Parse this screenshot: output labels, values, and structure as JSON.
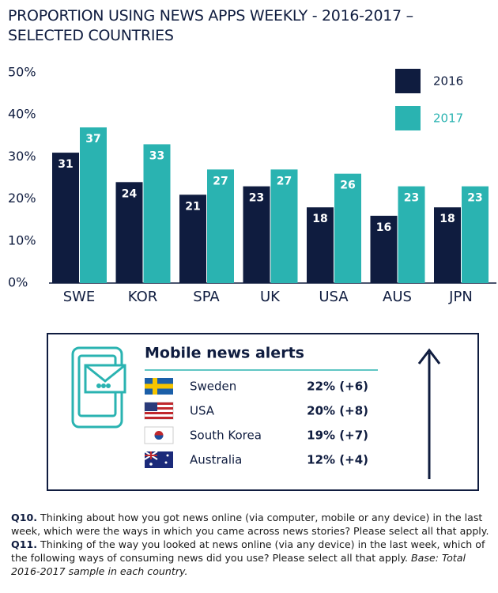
{
  "chart_data": {
    "type": "bar",
    "title": "PROPORTION USING NEWS APPS WEEKLY - 2016-2017 – SELECTED COUNTRIES",
    "categories": [
      "SWE",
      "KOR",
      "SPA",
      "UK",
      "USA",
      "AUS",
      "JPN"
    ],
    "series": [
      {
        "name": "2016",
        "color": "#0f1c3f",
        "values": [
          31,
          24,
          21,
          23,
          18,
          16,
          18
        ]
      },
      {
        "name": "2017",
        "color": "#2ab3b1",
        "values": [
          37,
          33,
          27,
          27,
          26,
          23,
          23
        ]
      }
    ],
    "ylim": [
      0,
      50
    ],
    "yticks": [
      {
        "value": 0,
        "label": "0%"
      },
      {
        "value": 10,
        "label": "10%"
      },
      {
        "value": 20,
        "label": "20%"
      },
      {
        "value": 30,
        "label": "30%"
      },
      {
        "value": 40,
        "label": "40%"
      },
      {
        "value": 50,
        "label": "50%"
      }
    ],
    "grid": false
  },
  "alerts": {
    "title": "Mobile news alerts",
    "rows": [
      {
        "country": "Sweden",
        "value": "22% (+6)"
      },
      {
        "country": "USA",
        "value": "20% (+8)"
      },
      {
        "country": "South Korea",
        "value": "19% (+7)"
      },
      {
        "country": "Australia",
        "value": "12% (+4)"
      }
    ]
  },
  "notes": {
    "q10_label": "Q10.",
    "q10_text": "Thinking about how you got news online (via computer, mobile or any device) in the last week, which were the ways in which you came across news stories? Please select all that apply.",
    "q11_label": "Q11.",
    "q11_text": "Thinking of the way you looked at news online (via any device) in the last week, which of the following ways of consuming news did you use? Please select all that apply.",
    "base": "Base: Total 2016-2017 sample in each country."
  }
}
